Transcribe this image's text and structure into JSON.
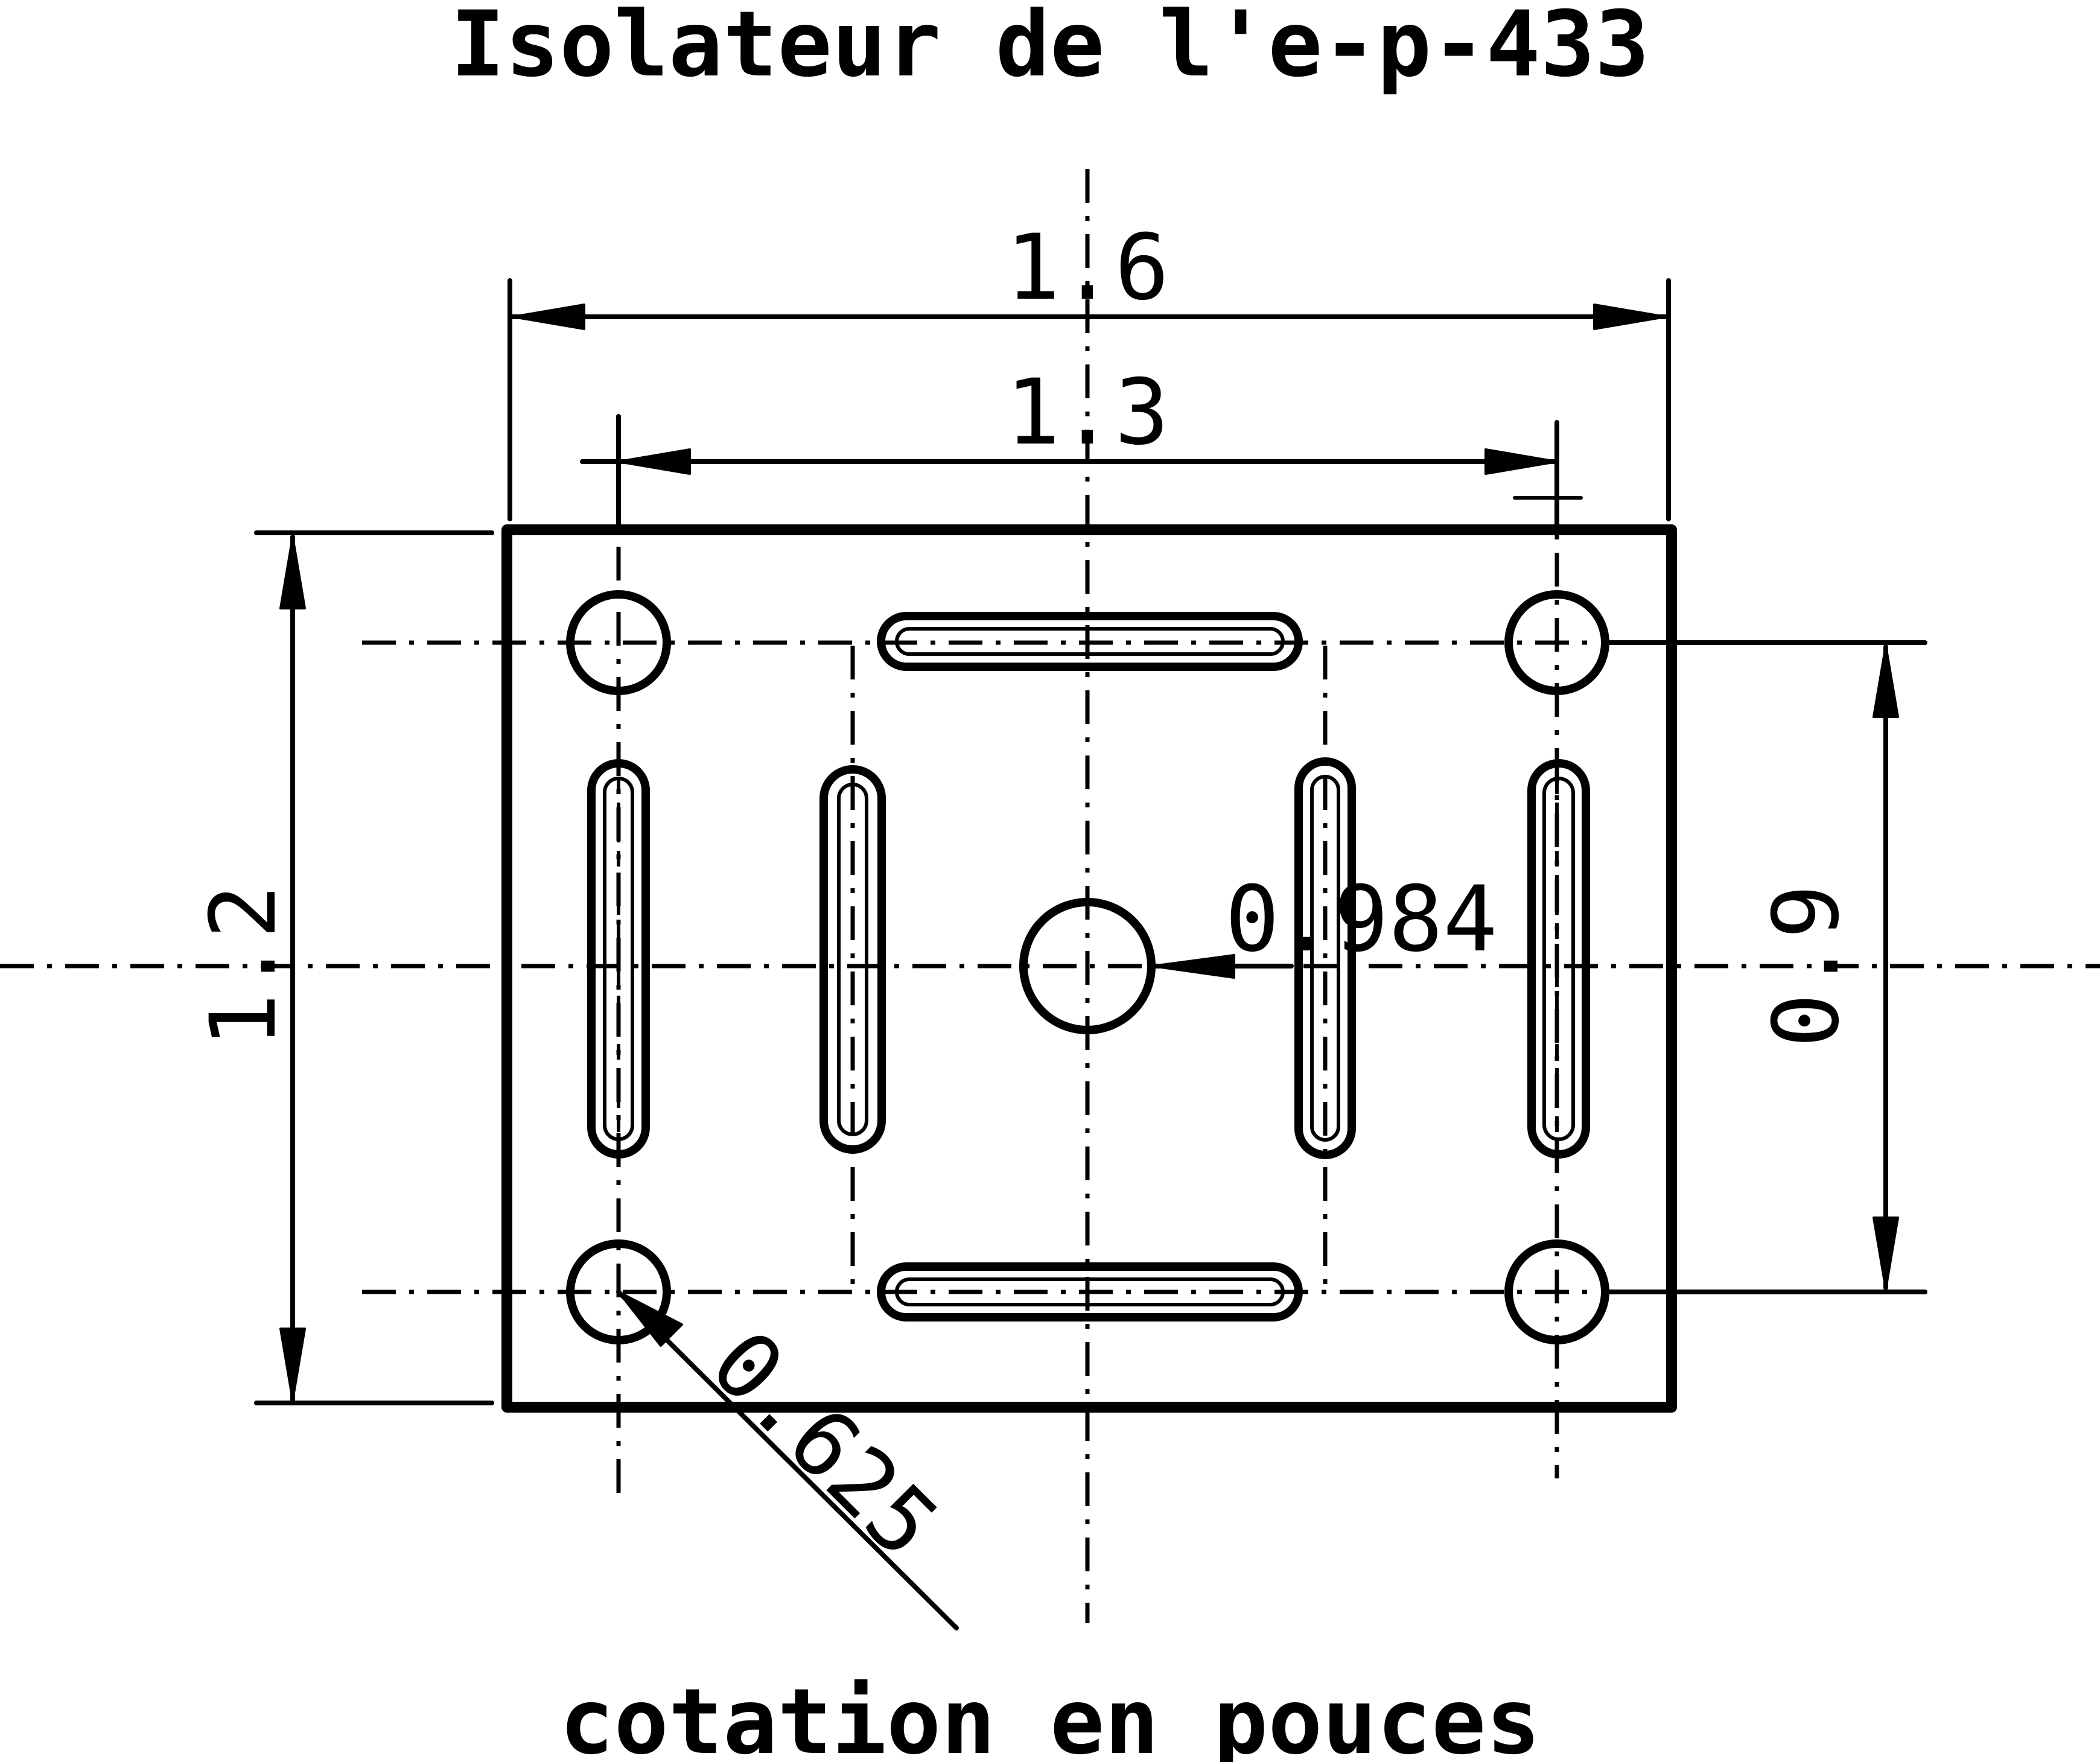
{
  "title": "Isolateur de l'e-p-433",
  "subtitle": "cotation en pouces",
  "dimensions": {
    "overall_width": "1.6",
    "hole_spacing_x": "1.3",
    "overall_height": "1.2",
    "hole_spacing_y": "0.9",
    "center_hole_diameter": "0.984",
    "mount_hole_diameter": "0.625"
  },
  "colors": {
    "ink": "#000000",
    "paper": "#ffffff"
  }
}
